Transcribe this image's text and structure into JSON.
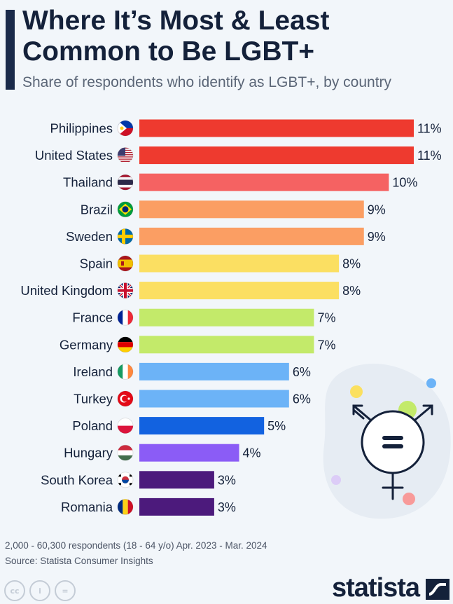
{
  "header": {
    "title": "Where It’s Most & Least Common to Be LGBT+",
    "subtitle": "Share of respondents who identify as LGBT+, by country"
  },
  "chart_data": {
    "type": "bar",
    "orientation": "horizontal",
    "categories": [
      "Philippines",
      "United States",
      "Thailand",
      "Brazil",
      "Sweden",
      "Spain",
      "United Kingdom",
      "France",
      "Germany",
      "Ireland",
      "Turkey",
      "Poland",
      "Hungary",
      "South Korea",
      "Romania"
    ],
    "values": [
      11,
      11,
      10,
      9,
      9,
      8,
      8,
      7,
      7,
      6,
      6,
      5,
      4,
      3,
      3
    ],
    "value_labels": [
      "11%",
      "11%",
      "10%",
      "9%",
      "9%",
      "8%",
      "8%",
      "7%",
      "7%",
      "6%",
      "6%",
      "5%",
      "4%",
      "3%",
      "3%"
    ],
    "colors": [
      "#ee3a2f",
      "#ee3a2f",
      "#f56262",
      "#fb9e63",
      "#fb9e63",
      "#fbdf62",
      "#fbdf62",
      "#c3ea6a",
      "#c3ea6a",
      "#6cb3f7",
      "#6cb3f7",
      "#1262e0",
      "#8b5cf6",
      "#4c1a7c",
      "#4c1a7c"
    ],
    "flag_icons": [
      "philippines-flag-icon",
      "united-states-flag-icon",
      "thailand-flag-icon",
      "brazil-flag-icon",
      "sweden-flag-icon",
      "spain-flag-icon",
      "united-kingdom-flag-icon",
      "france-flag-icon",
      "germany-flag-icon",
      "ireland-flag-icon",
      "turkey-flag-icon",
      "poland-flag-icon",
      "hungary-flag-icon",
      "south-korea-flag-icon",
      "romania-flag-icon"
    ],
    "xlim": [
      0,
      11
    ],
    "grid": false,
    "legend": "none"
  },
  "footer": {
    "note": "2,000 - 60,300 respondents (18 - 64 y/o) Apr. 2023 - Mar. 2024",
    "source": "Source: Statista Consumer Insights",
    "brand": "statista",
    "license_icons": [
      "cc",
      "i",
      "="
    ]
  },
  "decoration": {
    "icon": "transgender-symbol-icon"
  }
}
